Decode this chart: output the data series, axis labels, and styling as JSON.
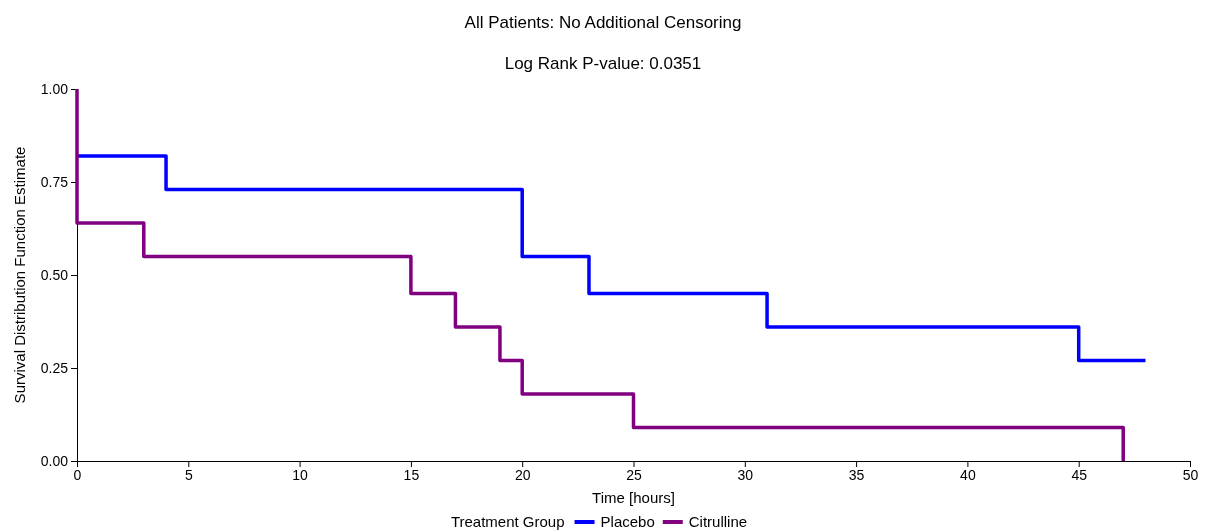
{
  "chart_data": {
    "type": "step",
    "title": "All Patients: No Additional Censoring",
    "subtitle": "Log Rank P-value: 0.0351",
    "xlabel": "Time [hours]",
    "ylabel": "Survival Distribution Function Estimate",
    "legend_title": "Treatment Group",
    "legend": "bottom",
    "grid": false,
    "line_style": "solid",
    "xlim": [
      0,
      50
    ],
    "xticks": [
      0,
      5,
      10,
      15,
      20,
      25,
      30,
      35,
      40,
      45,
      50
    ],
    "ylim": [
      0,
      1
    ],
    "yticks": [
      {
        "value": 0,
        "label": "0.00"
      },
      {
        "value": 0.25,
        "label": "0.25"
      },
      {
        "value": 0.5,
        "label": "0.50"
      },
      {
        "value": 0.75,
        "label": "0.75"
      },
      {
        "value": 1,
        "label": "1.00"
      }
    ],
    "series": [
      {
        "name": "Placebo",
        "color": "#0000ff",
        "x": [
          0,
          4,
          20,
          23,
          31,
          45,
          48
        ],
        "values": [
          0.82,
          0.73,
          0.55,
          0.45,
          0.36,
          0.27,
          0.27
        ]
      },
      {
        "name": "Citrulline",
        "color": "#800080",
        "x": [
          0,
          0,
          3,
          15,
          17,
          19,
          20,
          25,
          47
        ],
        "values": [
          1,
          0.64,
          0.55,
          0.45,
          0.36,
          0.27,
          0.18,
          0.09,
          0
        ]
      }
    ]
  }
}
